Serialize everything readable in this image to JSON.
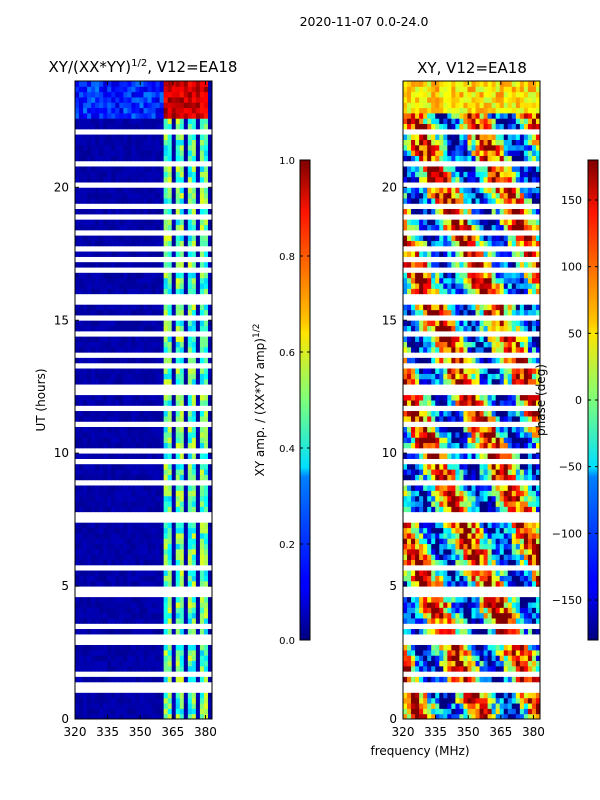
{
  "suptitle": "2020-11-07 0.0-24.0",
  "chart_data": [
    {
      "type": "heatmap",
      "title_main": "XY/(XX*YY)",
      "title_exp": "1/2",
      "title_tail": ", V12=EA18",
      "xlabel": "",
      "ylabel": "UT (hours)",
      "xlim": [
        320,
        383
      ],
      "ylim": [
        0,
        24
      ],
      "xticks": [
        320,
        335,
        350,
        365,
        380
      ],
      "yticks": [
        0,
        5,
        10,
        15,
        20
      ],
      "colorbar": {
        "label_main": "XY amp. / (XX*YY amp)",
        "label_exp": "1/2",
        "range": [
          0.0,
          1.0
        ],
        "ticks": [
          "0.0",
          "0.2",
          "0.4",
          "0.6",
          "0.8",
          "1.0"
        ],
        "tick_values": [
          0.0,
          0.2,
          0.4,
          0.6,
          0.8,
          1.0
        ],
        "colormap": "jet"
      }
    },
    {
      "type": "heatmap",
      "title": "XY, V12=EA18",
      "xlabel": "frequency (MHz)",
      "ylabel": "",
      "xlim": [
        320,
        383
      ],
      "ylim": [
        0,
        24
      ],
      "xticks": [
        320,
        335,
        350,
        365,
        380
      ],
      "yticks": [
        0,
        5,
        10,
        15,
        20
      ],
      "colorbar": {
        "label": "phase (deg)",
        "range": [
          -180,
          180
        ],
        "ticks": [
          "150",
          "100",
          "50",
          "0",
          "−50",
          "−100",
          "−150"
        ],
        "tick_values": [
          150,
          100,
          50,
          0,
          -50,
          -100,
          -150
        ],
        "colormap": "jet"
      }
    }
  ]
}
